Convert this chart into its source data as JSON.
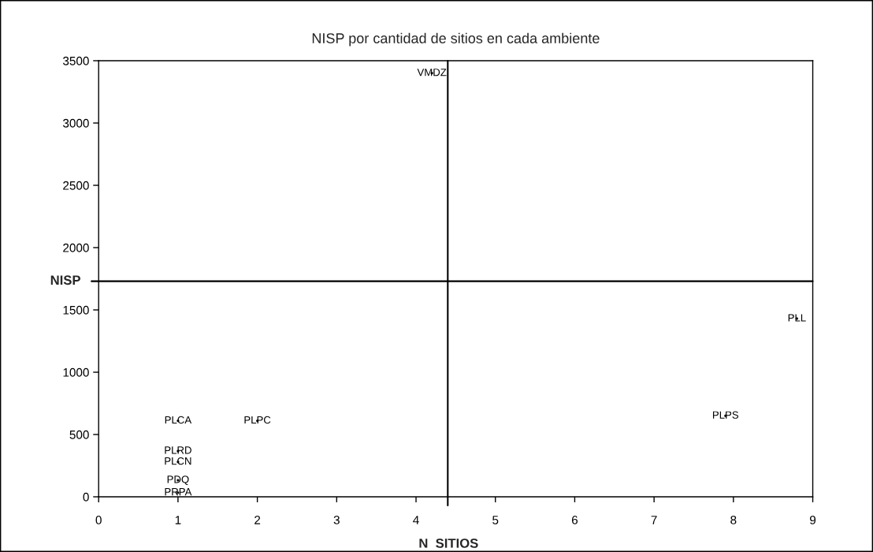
{
  "chart_data": {
    "type": "scatter",
    "title": "NISP por cantidad de sitios en cada ambiente",
    "xlabel": "N  SITIOS",
    "ylabel": "NISP",
    "x": [
      1,
      2,
      1,
      1,
      1,
      1,
      4.2,
      8.8,
      7.9
    ],
    "values": [
      610,
      610,
      367,
      280,
      133,
      33,
      3400,
      1430,
      650
    ],
    "value_labels": [
      "PLCA",
      "PLPC",
      "PLRD",
      "PLCN",
      "PDQ",
      "PRPA",
      "VMDZ",
      "PLL",
      "PLPS"
    ],
    "xlim": [
      0,
      9
    ],
    "ylim": [
      0,
      3500
    ],
    "xticks": [
      0,
      1,
      2,
      3,
      4,
      5,
      6,
      7,
      8,
      9
    ],
    "yticks": [
      0,
      500,
      1000,
      1500,
      2000,
      2500,
      3000,
      3500
    ],
    "ref_lines": [
      {
        "axis": "x",
        "value": 4.4,
        "color": "#000000"
      },
      {
        "axis": "y",
        "value": 1730,
        "color": "#000000"
      }
    ],
    "grid": false,
    "legend": false
  }
}
